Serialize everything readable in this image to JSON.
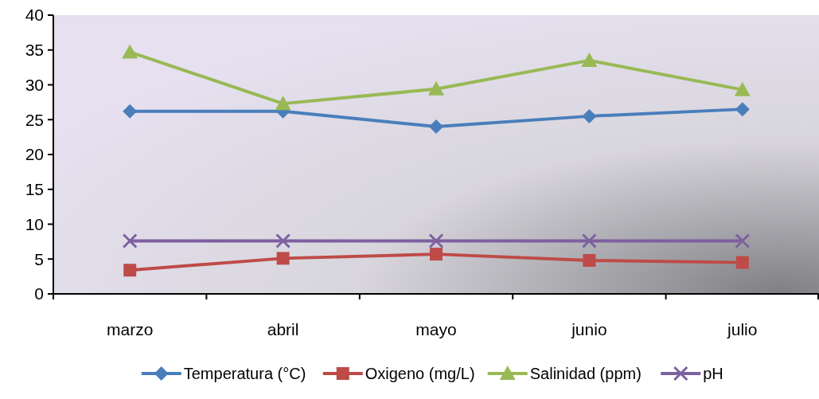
{
  "chart_data": {
    "type": "line",
    "categories": [
      "marzo",
      "abril",
      "mayo",
      "junio",
      "julio"
    ],
    "series": [
      {
        "name": "Temperatura (°C)",
        "color": "#4a7ebb",
        "marker": "diamond",
        "values": [
          26.2,
          26.2,
          24.0,
          25.5,
          26.5
        ]
      },
      {
        "name": "Oxigeno (mg/L)",
        "color": "#be4b48",
        "marker": "square",
        "values": [
          3.4,
          5.1,
          5.7,
          4.8,
          4.5
        ]
      },
      {
        "name": "Salinidad (ppm)",
        "color": "#98b954",
        "marker": "triangle",
        "values": [
          34.7,
          27.3,
          29.4,
          33.5,
          29.3
        ]
      },
      {
        "name": "pH",
        "color": "#7d60a0",
        "marker": "cross",
        "values": [
          7.6,
          7.6,
          7.6,
          7.6,
          7.6
        ]
      }
    ],
    "ylim": [
      0,
      40
    ],
    "yticks": [
      0,
      5,
      10,
      15,
      20,
      25,
      30,
      35,
      40
    ],
    "grid": false,
    "legend": "bottom",
    "line_style": "solid"
  }
}
